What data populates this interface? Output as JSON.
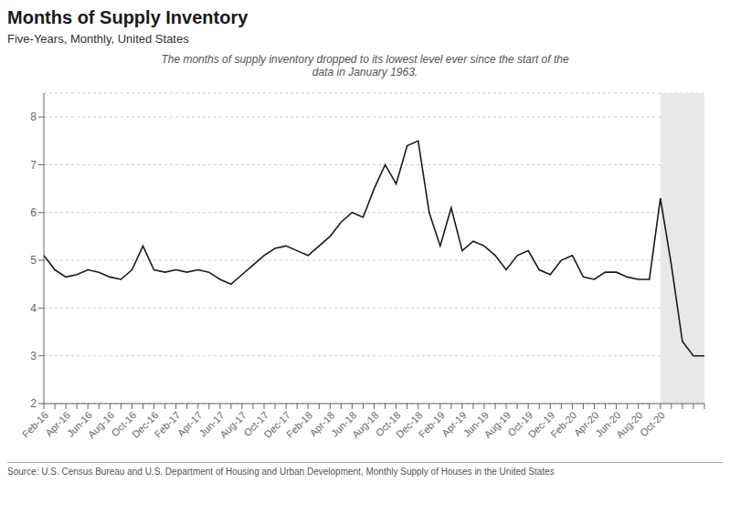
{
  "chart_data": {
    "type": "line",
    "title": "Months of Supply Inventory",
    "subtitle": "Five-Years, Monthly, United States",
    "annotation": "The months of supply inventory dropped to its lowest level ever since the start of the\ndata in January 1963.",
    "source": "Source:  U.S. Census Bureau and U.S. Department of Housing and Urban Development, Monthly Supply of Houses in the United States",
    "categories": [
      "Feb-16",
      null,
      "Apr-16",
      null,
      "Jun-16",
      null,
      "Aug-16",
      null,
      "Oct-16",
      null,
      "Dec-16",
      null,
      "Feb-17",
      null,
      "Apr-17",
      null,
      "Jun-17",
      null,
      "Aug-17",
      null,
      "Oct-17",
      null,
      "Dec-17",
      null,
      "Feb-18",
      null,
      "Apr-18",
      null,
      "Jun-18",
      null,
      "Aug-18",
      null,
      "Oct-18",
      null,
      "Dec-18",
      null,
      "Feb-19",
      null,
      "Apr-19",
      null,
      "Jun-19",
      null,
      "Aug-19",
      null,
      "Oct-19",
      null,
      "Dec-19",
      null,
      "Feb-20",
      null,
      "Apr-20",
      null,
      "Jun-20",
      null,
      "Aug-20",
      null,
      "Oct-20",
      null,
      null,
      null,
      null
    ],
    "values": [
      5.1,
      4.8,
      4.65,
      4.7,
      4.8,
      4.75,
      4.65,
      4.6,
      4.8,
      5.3,
      4.8,
      4.75,
      4.8,
      4.75,
      4.8,
      4.75,
      4.6,
      4.5,
      4.7,
      4.9,
      5.1,
      5.25,
      5.3,
      5.2,
      5.1,
      5.3,
      5.5,
      5.8,
      6.0,
      5.9,
      6.5,
      7.0,
      6.6,
      7.4,
      7.5,
      6.0,
      5.3,
      6.1,
      5.2,
      5.4,
      5.3,
      5.1,
      4.8,
      5.1,
      5.2,
      4.8,
      4.7,
      5.0,
      5.1,
      4.65,
      4.6,
      4.75,
      4.75,
      4.65,
      4.6,
      4.6,
      6.3,
      4.9,
      3.3,
      3.0,
      3.0
    ],
    "color": "#1a1a1a",
    "ylim": [
      2,
      8.5
    ],
    "yticks": [
      2,
      3,
      4,
      5,
      6,
      7,
      8
    ],
    "grid": true,
    "shaded_region": {
      "from": "Oct-20",
      "color": "#e8e8e8"
    }
  }
}
